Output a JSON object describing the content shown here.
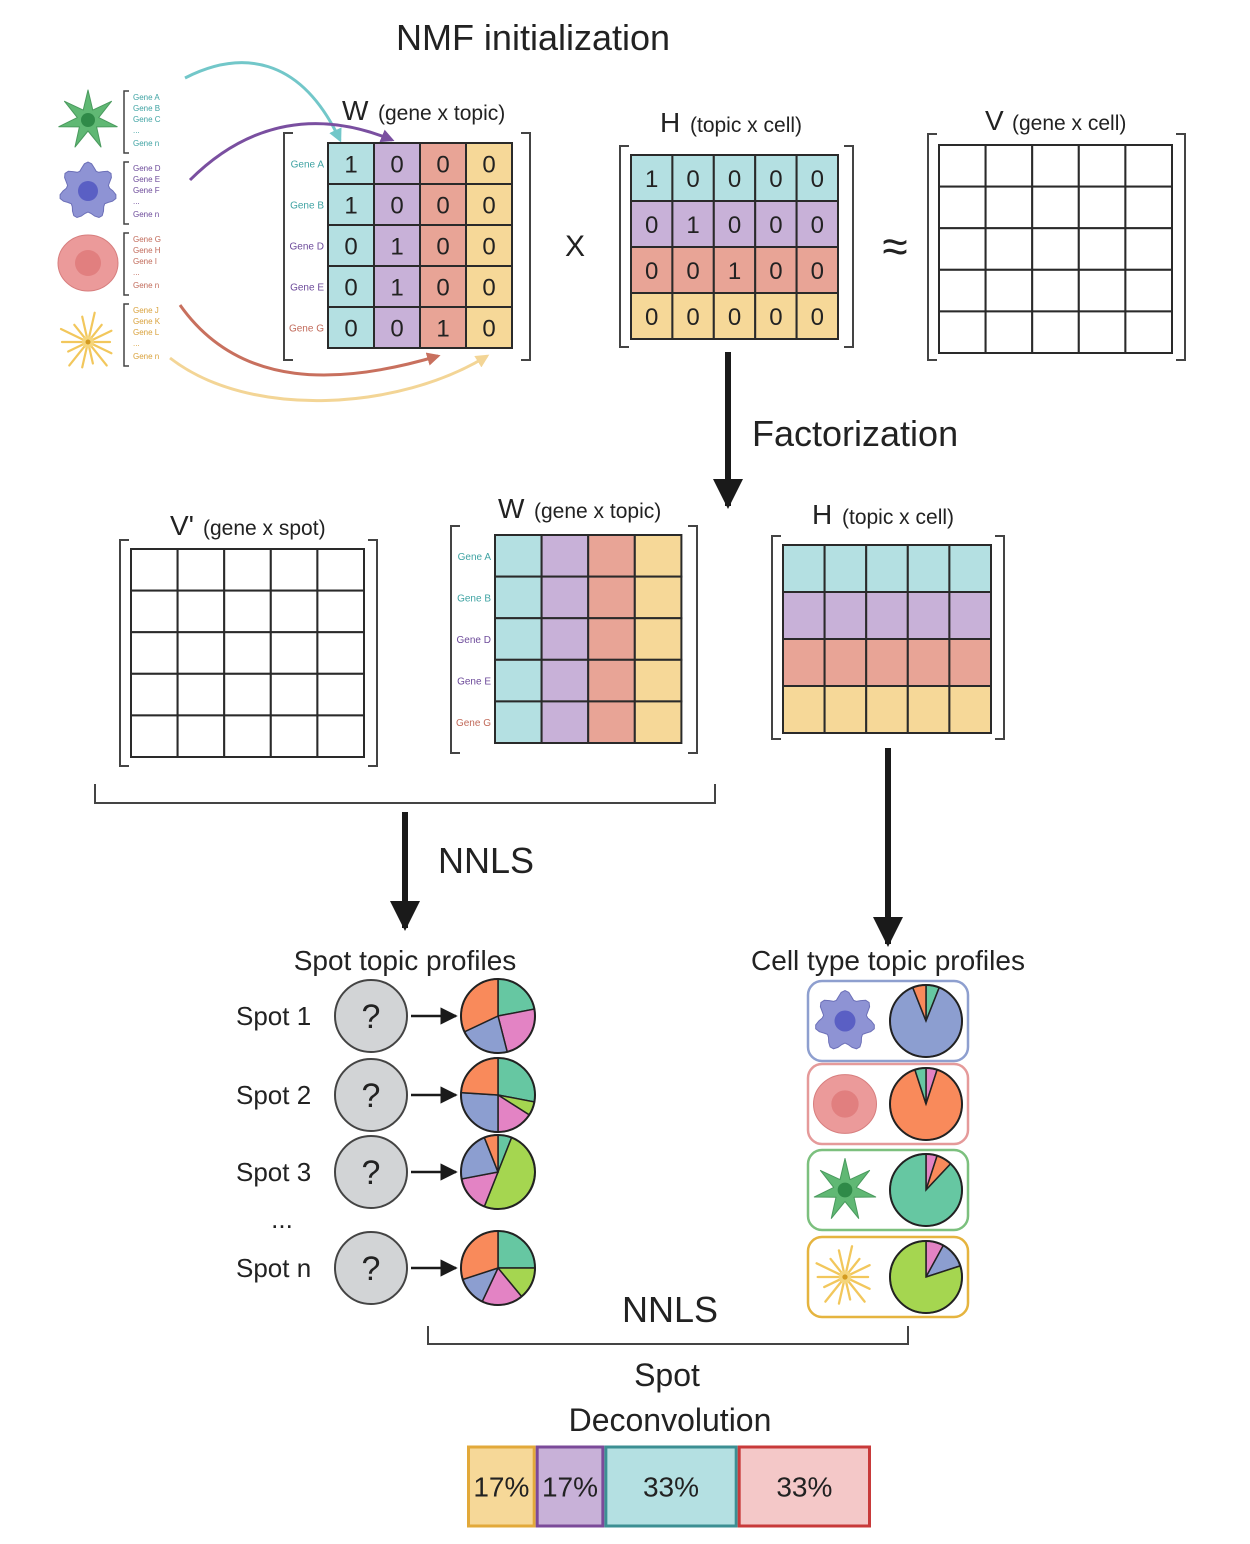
{
  "title": "NMF initialization",
  "colors": {
    "cyan": "#b4e0e2",
    "purple": "#c8b1d8",
    "salmon": "#e8a496",
    "yellow": "#f6d898",
    "green": "#60b874",
    "blue": "#8e93d4",
    "pink_cell": "#eb9a9a",
    "star": "#f2c75c",
    "gene_cyan": "#3fa3a3",
    "gene_purple": "#6c4a9a",
    "gene_salmon": "#c16a5a",
    "gene_yellow": "#d9a13b",
    "pie_orange": "#f98a5b",
    "pie_teal": "#66c7a2",
    "pie_blue": "#8c9ed0",
    "pie_pink": "#e383c4",
    "pie_green": "#a5d650"
  },
  "gene_lists": [
    {
      "genes": [
        "Gene A",
        "Gene B",
        "Gene C",
        "...",
        "Gene n"
      ],
      "color": "gene_cyan",
      "icon": "green-star-cell-icon"
    },
    {
      "genes": [
        "Gene D",
        "Gene E",
        "Gene F",
        "...",
        "Gene n"
      ],
      "color": "gene_purple",
      "icon": "blue-blob-cell-icon"
    },
    {
      "genes": [
        "Gene G",
        "Gene H",
        "Gene I",
        "...",
        "Gene n"
      ],
      "color": "gene_salmon",
      "icon": "red-round-cell-icon"
    },
    {
      "genes": [
        "Gene J",
        "Gene K",
        "Gene L",
        "...",
        "Gene n"
      ],
      "color": "gene_yellow",
      "icon": "yellow-neuron-cell-icon"
    }
  ],
  "w_init": {
    "title_big": "W",
    "title_small": "(gene x topic)",
    "rows": [
      "Gene A",
      "Gene B",
      "Gene D",
      "Gene E",
      "Gene G"
    ],
    "row_colors": [
      "gene_cyan",
      "gene_cyan",
      "gene_purple",
      "gene_purple",
      "gene_salmon"
    ],
    "values": [
      [
        "1",
        "0",
        "0",
        "0"
      ],
      [
        "1",
        "0",
        "0",
        "0"
      ],
      [
        "0",
        "1",
        "0",
        "0"
      ],
      [
        "0",
        "1",
        "0",
        "0"
      ],
      [
        "0",
        "0",
        "1",
        "0"
      ]
    ]
  },
  "multiply_symbol": "X",
  "approx_symbol": "≈",
  "h_init": {
    "title_big": "H",
    "title_small": "(topic x cell)",
    "values": [
      [
        "1",
        "0",
        "0",
        "0",
        "0"
      ],
      [
        "0",
        "1",
        "0",
        "0",
        "0"
      ],
      [
        "0",
        "0",
        "1",
        "0",
        "0"
      ],
      [
        "0",
        "0",
        "0",
        "0",
        "0"
      ]
    ]
  },
  "v": {
    "title_big": "V",
    "title_small": "(gene x cell)"
  },
  "factorization_label": "Factorization",
  "v_prime": {
    "title_big": "V'",
    "title_small": "(gene x spot)"
  },
  "w_fact": {
    "title_big": "W",
    "title_small": "(gene x topic)",
    "rows": [
      "Gene A",
      "Gene B",
      "Gene D",
      "Gene E",
      "Gene G"
    ],
    "row_colors": [
      "gene_cyan",
      "gene_cyan",
      "gene_purple",
      "gene_purple",
      "gene_salmon"
    ]
  },
  "h_fact": {
    "title_big": "H",
    "title_small": "(topic x cell)"
  },
  "nnls_label": "NNLS",
  "spot_profiles": {
    "title": "Spot topic profiles",
    "unknown_symbol": "?",
    "ellipsis": "...",
    "spots": [
      {
        "label": "Spot 1",
        "pie": [
          {
            "c": "pie_teal",
            "v": 0.22
          },
          {
            "c": "pie_pink",
            "v": 0.24
          },
          {
            "c": "pie_blue",
            "v": 0.22
          },
          {
            "c": "pie_orange",
            "v": 0.32
          }
        ]
      },
      {
        "label": "Spot 2",
        "pie": [
          {
            "c": "pie_teal",
            "v": 0.28
          },
          {
            "c": "pie_green",
            "v": 0.06
          },
          {
            "c": "pie_pink",
            "v": 0.16
          },
          {
            "c": "pie_blue",
            "v": 0.26
          },
          {
            "c": "pie_orange",
            "v": 0.24
          }
        ]
      },
      {
        "label": "Spot 3",
        "pie": [
          {
            "c": "pie_teal",
            "v": 0.06
          },
          {
            "c": "pie_green",
            "v": 0.5
          },
          {
            "c": "pie_pink",
            "v": 0.16
          },
          {
            "c": "pie_blue",
            "v": 0.22
          },
          {
            "c": "pie_orange",
            "v": 0.06
          }
        ]
      },
      {
        "label": "Spot n",
        "pie": [
          {
            "c": "pie_teal",
            "v": 0.25
          },
          {
            "c": "pie_green",
            "v": 0.14
          },
          {
            "c": "pie_pink",
            "v": 0.18
          },
          {
            "c": "pie_blue",
            "v": 0.13
          },
          {
            "c": "pie_orange",
            "v": 0.3
          }
        ]
      }
    ]
  },
  "cell_profiles": {
    "title": "Cell type topic profiles",
    "cells": [
      {
        "icon": "blue-blob-cell-icon",
        "border": "#8e9fcf",
        "pie": [
          {
            "c": "pie_teal",
            "v": 0.06
          },
          {
            "c": "pie_blue",
            "v": 0.88
          },
          {
            "c": "pie_orange",
            "v": 0.06
          }
        ]
      },
      {
        "icon": "red-round-cell-icon",
        "border": "#e59a9a",
        "pie": [
          {
            "c": "pie_pink",
            "v": 0.05
          },
          {
            "c": "pie_orange",
            "v": 0.9
          },
          {
            "c": "pie_teal",
            "v": 0.05
          }
        ]
      },
      {
        "icon": "green-star-cell-icon",
        "border": "#7cc07e",
        "pie": [
          {
            "c": "pie_pink",
            "v": 0.05
          },
          {
            "c": "pie_orange",
            "v": 0.07
          },
          {
            "c": "pie_teal",
            "v": 0.88
          }
        ]
      },
      {
        "icon": "yellow-neuron-cell-icon",
        "border": "#e5b43f",
        "pie": [
          {
            "c": "pie_pink",
            "v": 0.08
          },
          {
            "c": "pie_blue",
            "v": 0.12
          },
          {
            "c": "pie_green",
            "v": 0.8
          }
        ]
      }
    ]
  },
  "deconvolution": {
    "title_line1": "Spot",
    "title_line2": "Deconvolution",
    "segments": [
      {
        "label": "17%",
        "value": 17,
        "fill": "#f6d898",
        "border": "#e2a93a"
      },
      {
        "label": "17%",
        "value": 17,
        "fill": "#c8b1d8",
        "border": "#7b4a99"
      },
      {
        "label": "33%",
        "value": 33,
        "fill": "#b4e0e2",
        "border": "#3c8f93"
      },
      {
        "label": "33%",
        "value": 33,
        "fill": "#f4c8c8",
        "border": "#c83a3a"
      }
    ]
  }
}
